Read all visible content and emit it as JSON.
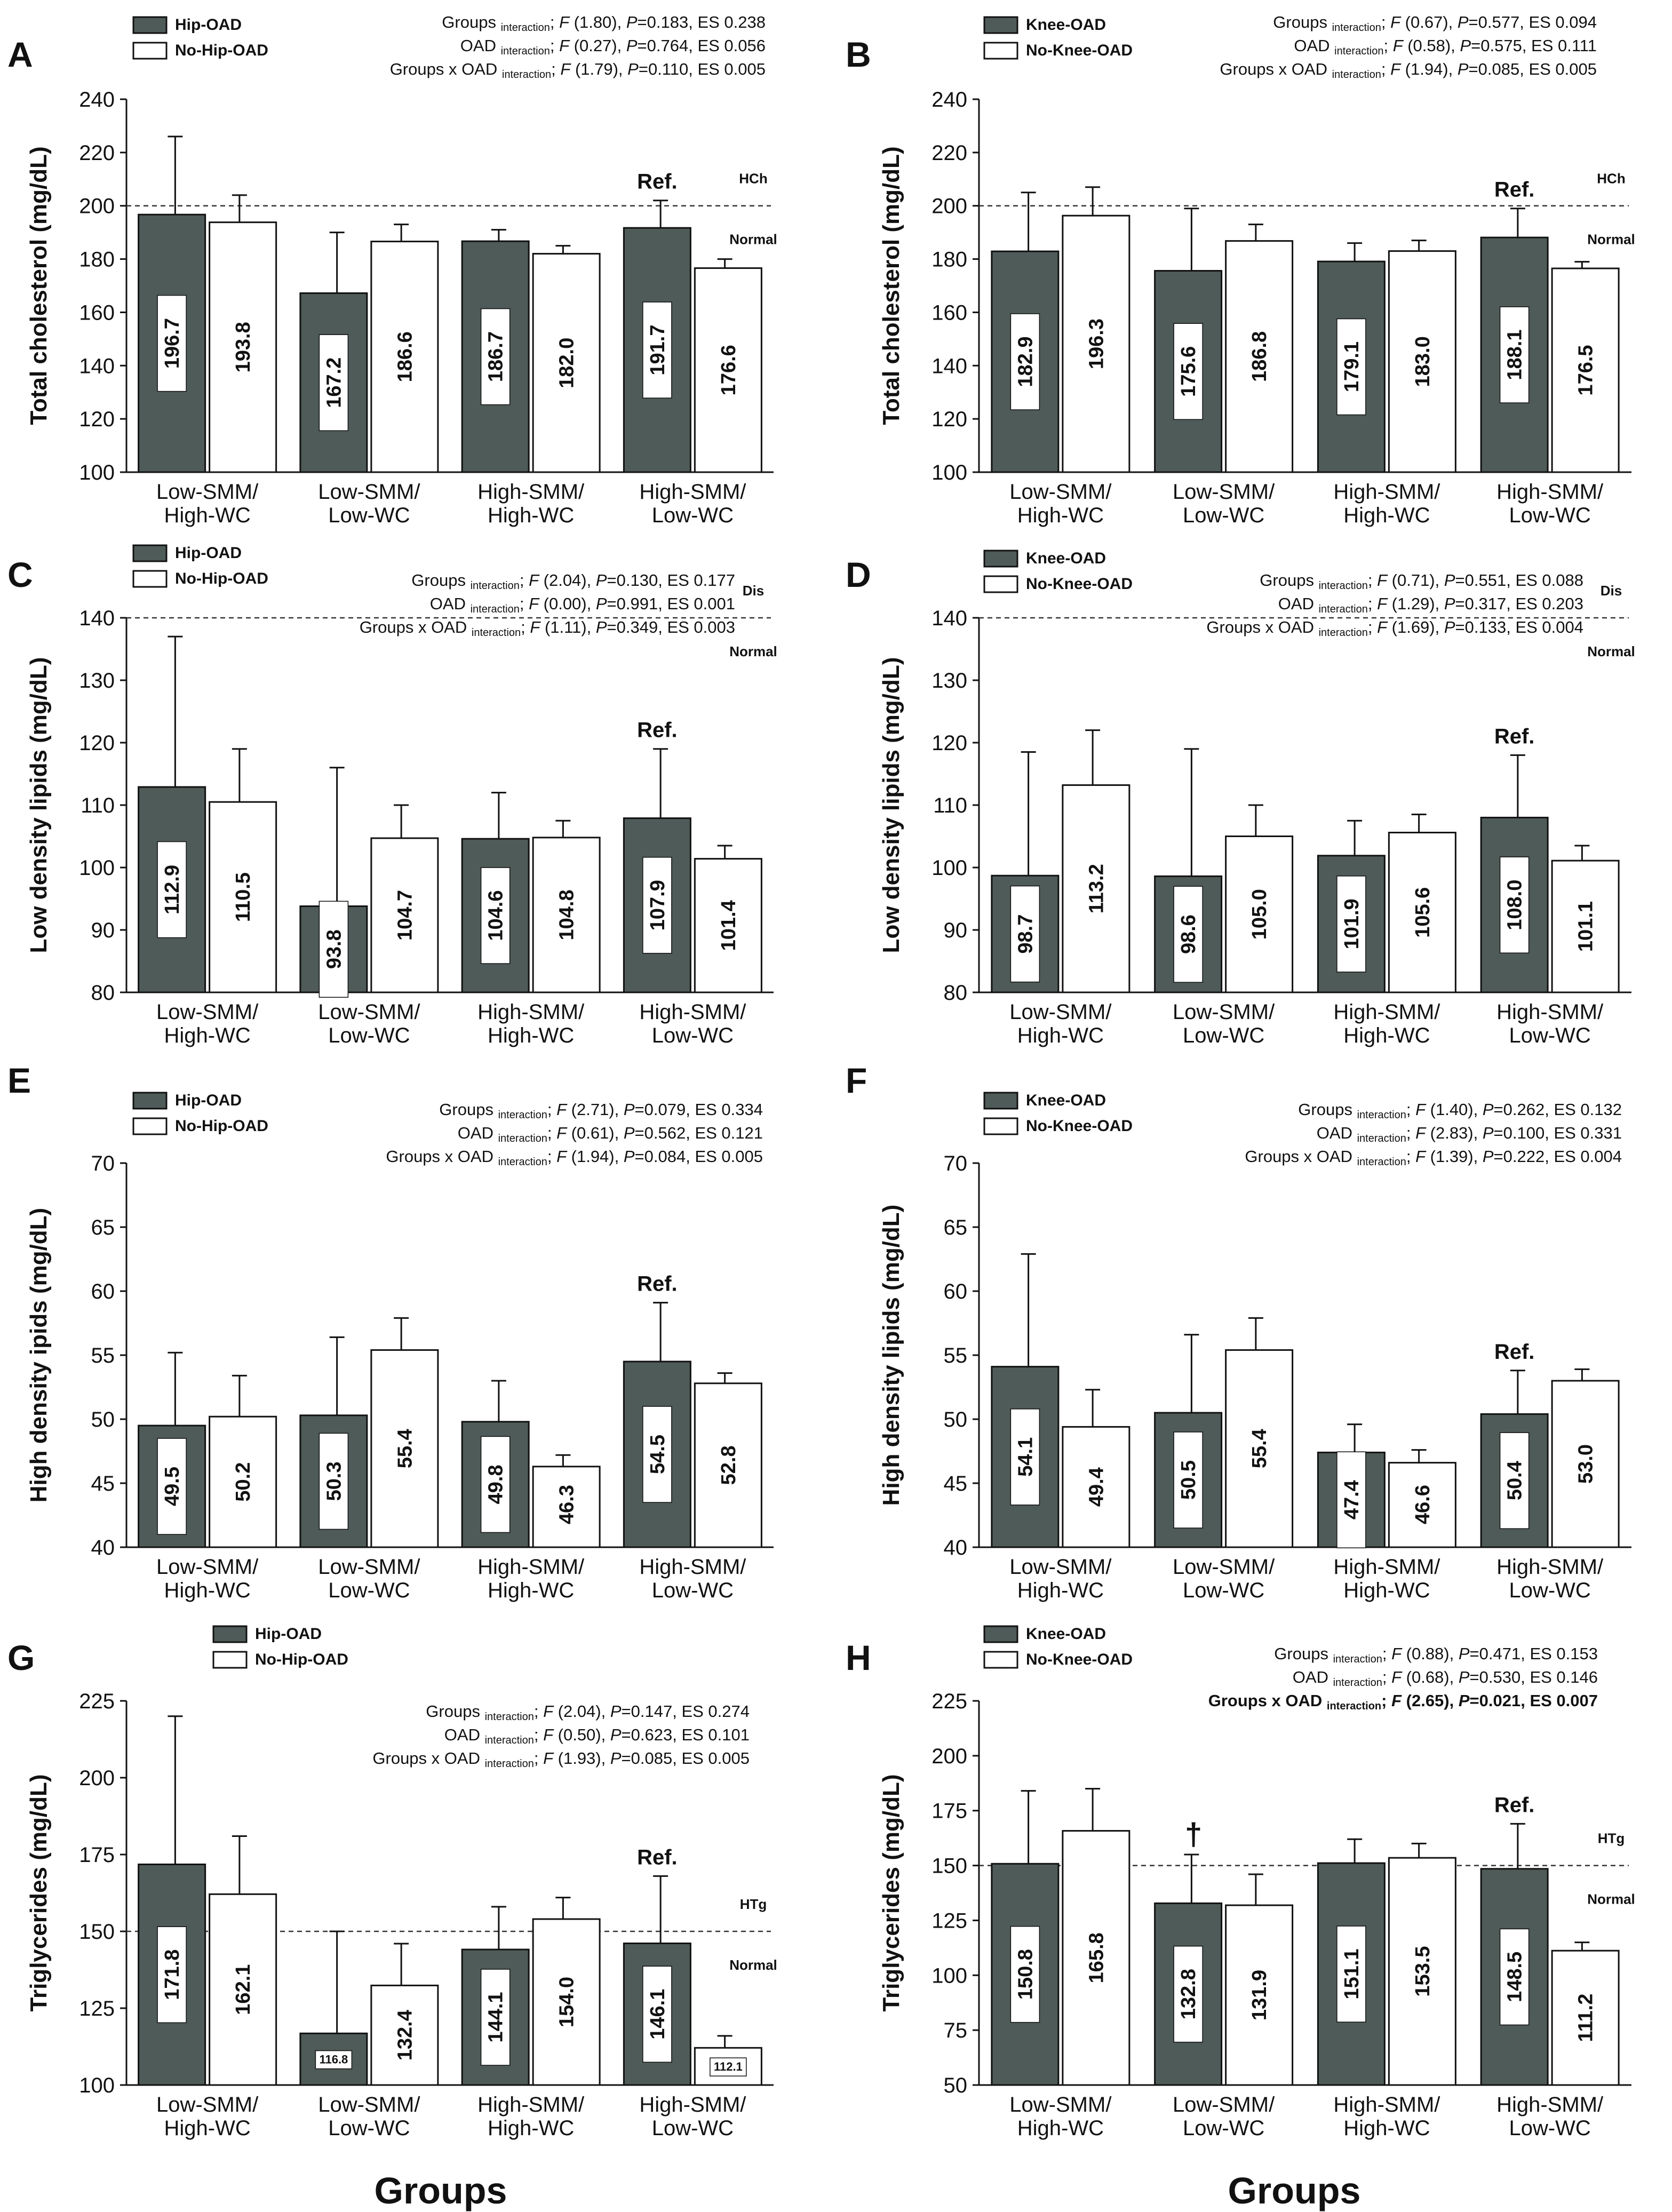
{
  "colors": {
    "dark_bar": "#4f5b58",
    "light_bar": "#ffffff",
    "text": "#111111"
  },
  "xaxis_title": "Groups",
  "chart_data": [
    {
      "id": "A",
      "type": "bar",
      "panel_letter": "A",
      "ylabel": "Total cholesterol (mg/dL)",
      "ylim": [
        100,
        240
      ],
      "yticks": [
        100,
        120,
        140,
        160,
        180,
        200,
        220,
        240
      ],
      "categories": [
        "Low-SMM/\nHigh-WC",
        "Low-SMM/\nLow-WC",
        "High-SMM/\nHigh-WC",
        "High-SMM/\nLow-WC"
      ],
      "series": [
        {
          "name": "Hip-OAD",
          "values": [
            196.7,
            167.2,
            186.7,
            191.7
          ],
          "errors": [
            226,
            190,
            191,
            202
          ],
          "labels": [
            "196.7",
            "167.2",
            "186.7",
            "191.7"
          ]
        },
        {
          "name": "No-Hip-OAD",
          "values": [
            193.8,
            186.6,
            182.0,
            176.6
          ],
          "errors": [
            204,
            193,
            185,
            180
          ],
          "labels": [
            "193.8",
            "186.6",
            "182.0",
            "176.6"
          ]
        }
      ],
      "ref_line": 200,
      "zone_above": "HCh",
      "zone_below": "Normal",
      "ref_label": "Ref.",
      "stats": [
        {
          "term": "Groups",
          "F": "(1.80)",
          "P": "=0.183",
          "ES": ", ES 0.238",
          "bold": false
        },
        {
          "term": "OAD",
          "F": "(0.27)",
          "P": "=0.764",
          "ES": ", ES 0.056",
          "bold": false
        },
        {
          "term": "Groups x OAD",
          "F": "(1.79)",
          "P": "=0.110",
          "ES": ", ES 0.005",
          "bold": false
        }
      ],
      "markers": []
    },
    {
      "id": "B",
      "type": "bar",
      "panel_letter": "B",
      "ylabel": "Total cholesterol (mg/dL)",
      "ylim": [
        100,
        240
      ],
      "yticks": [
        100,
        120,
        140,
        160,
        180,
        200,
        220,
        240
      ],
      "categories": [
        "Low-SMM/\nHigh-WC",
        "Low-SMM/\nLow-WC",
        "High-SMM/\nHigh-WC",
        "High-SMM/\nLow-WC"
      ],
      "series": [
        {
          "name": "Knee-OAD",
          "values": [
            182.9,
            175.6,
            179.1,
            188.1
          ],
          "errors": [
            205,
            199,
            186,
            199
          ],
          "labels": [
            "182.9",
            "175.6",
            "179.1",
            "188.1"
          ]
        },
        {
          "name": "No-Knee-OAD",
          "values": [
            196.3,
            186.8,
            183.0,
            176.5
          ],
          "errors": [
            207,
            193,
            187,
            179
          ],
          "labels": [
            "196.3",
            "186.8",
            "183.0",
            "176.5"
          ]
        }
      ],
      "ref_line": 200,
      "zone_above": "HCh",
      "zone_below": "Normal",
      "ref_label": "Ref.",
      "stats": [
        {
          "term": "Groups",
          "F": "(0.67)",
          "P": "=0.577",
          "ES": ", ES 0.094",
          "bold": false
        },
        {
          "term": "OAD",
          "F": "(0.58)",
          "P": "=0.575",
          "ES": ", ES 0.111",
          "bold": false
        },
        {
          "term": "Groups x OAD",
          "F": "(1.94)",
          "P": "=0.085",
          "ES": ", ES 0.005",
          "bold": false
        }
      ],
      "markers": []
    },
    {
      "id": "C",
      "type": "bar",
      "panel_letter": "C",
      "ylabel": "Low density lipids (mg/dL)",
      "ylim": [
        80,
        140
      ],
      "yticks": [
        80,
        90,
        100,
        110,
        120,
        130,
        140
      ],
      "categories": [
        "Low-SMM/\nHigh-WC",
        "Low-SMM/\nLow-WC",
        "High-SMM/\nHigh-WC",
        "High-SMM/\nLow-WC"
      ],
      "series": [
        {
          "name": "Hip-OAD",
          "values": [
            112.9,
            93.8,
            104.6,
            107.9
          ],
          "errors": [
            137,
            116,
            112,
            119
          ],
          "labels": [
            "112.9",
            "93.8",
            "104.6",
            "107.9"
          ]
        },
        {
          "name": "No-Hip-OAD",
          "values": [
            110.5,
            104.7,
            104.8,
            101.4
          ],
          "errors": [
            119,
            110,
            107.5,
            103.5
          ],
          "labels": [
            "110.5",
            "104.7",
            "104.8",
            "101.4"
          ]
        }
      ],
      "ref_line": 140,
      "zone_above": "Dis",
      "zone_below": "Normal",
      "ref_label": "Ref.",
      "stats": [
        {
          "term": "Groups",
          "F": "(2.04)",
          "P": "=0.130",
          "ES": ", ES 0.177",
          "bold": false
        },
        {
          "term": "OAD",
          "F": "(0.00)",
          "P": "=0.991",
          "ES": ", ES 0.001",
          "bold": false
        },
        {
          "term": "Groups x OAD",
          "F": "(1.11)",
          "P": "=0.349",
          "ES": ", ES 0.003",
          "bold": false
        }
      ],
      "markers": []
    },
    {
      "id": "D",
      "type": "bar",
      "panel_letter": "D",
      "ylabel": "Low density lipids (mg/dL)",
      "ylim": [
        80,
        140
      ],
      "yticks": [
        80,
        90,
        100,
        110,
        120,
        130,
        140
      ],
      "categories": [
        "Low-SMM/\nHigh-WC",
        "Low-SMM/\nLow-WC",
        "High-SMM/\nHigh-WC",
        "High-SMM/\nLow-WC"
      ],
      "series": [
        {
          "name": "Knee-OAD",
          "values": [
            98.7,
            98.6,
            101.9,
            108.0
          ],
          "errors": [
            118.5,
            119,
            107.5,
            118
          ],
          "labels": [
            "98.7",
            "98.6",
            "101.9",
            "108.0"
          ]
        },
        {
          "name": "No-Knee-OAD",
          "values": [
            113.2,
            105.0,
            105.6,
            101.1
          ],
          "errors": [
            122,
            110,
            108.5,
            103.5
          ],
          "labels": [
            "113.2",
            "105.0",
            "105.6",
            "101.1"
          ]
        }
      ],
      "ref_line": 140,
      "zone_above": "Dis",
      "zone_below": "Normal",
      "ref_label": "Ref.",
      "stats": [
        {
          "term": "Groups",
          "F": "(0.71)",
          "P": "=0.551",
          "ES": ", ES 0.088",
          "bold": false
        },
        {
          "term": "OAD",
          "F": "(1.29)",
          "P": "=0.317",
          "ES": ", ES 0.203",
          "bold": false
        },
        {
          "term": "Groups x OAD",
          "F": "(1.69)",
          "P": "=0.133",
          "ES": ", ES 0.004",
          "bold": false
        }
      ],
      "markers": []
    },
    {
      "id": "E",
      "type": "bar",
      "panel_letter": "E",
      "ylabel": "High density ipids (mg/dL)",
      "ylim": [
        40,
        70
      ],
      "yticks": [
        40,
        45,
        50,
        55,
        60,
        65,
        70
      ],
      "categories": [
        "Low-SMM/\nHigh-WC",
        "Low-SMM/\nLow-WC",
        "High-SMM/\nHigh-WC",
        "High-SMM/\nLow-WC"
      ],
      "series": [
        {
          "name": "Hip-OAD",
          "values": [
            49.5,
            50.3,
            49.8,
            54.5
          ],
          "errors": [
            55.2,
            56.4,
            53,
            59.1
          ],
          "labels": [
            "49.5",
            "50.3",
            "49.8",
            "54.5"
          ]
        },
        {
          "name": "No-Hip-OAD",
          "values": [
            50.2,
            55.4,
            46.3,
            52.8
          ],
          "errors": [
            53.4,
            57.9,
            47.2,
            53.6
          ],
          "labels": [
            "50.2",
            "55.4",
            "46.3",
            "52.8"
          ]
        }
      ],
      "ref_line": null,
      "zone_above": "",
      "zone_below": "",
      "ref_label": "Ref.",
      "stats": [
        {
          "term": "Groups",
          "F": "(2.71)",
          "P": "=0.079",
          "ES": ", ES 0.334",
          "bold": false
        },
        {
          "term": "OAD",
          "F": "(0.61)",
          "P": "=0.562",
          "ES": ", ES 0.121",
          "bold": false
        },
        {
          "term": "Groups x OAD",
          "F": "(1.94)",
          "P": "=0.084",
          "ES": ", ES 0.005",
          "bold": false
        }
      ],
      "markers": []
    },
    {
      "id": "F",
      "type": "bar",
      "panel_letter": "F",
      "ylabel": "High density lipids (mg/dL)",
      "ylim": [
        40,
        70
      ],
      "yticks": [
        40,
        45,
        50,
        55,
        60,
        65,
        70
      ],
      "categories": [
        "Low-SMM/\nHigh-WC",
        "Low-SMM/\nLow-WC",
        "High-SMM/\nHigh-WC",
        "High-SMM/\nLow-WC"
      ],
      "series": [
        {
          "name": "Knee-OAD",
          "values": [
            54.1,
            50.5,
            47.4,
            50.4
          ],
          "errors": [
            62.9,
            56.6,
            49.6,
            53.8
          ],
          "labels": [
            "54.1",
            "50.5",
            "47.4",
            "50.4"
          ]
        },
        {
          "name": "No-Knee-OAD",
          "values": [
            49.4,
            55.4,
            46.6,
            53.0
          ],
          "errors": [
            52.3,
            57.9,
            47.6,
            53.9
          ],
          "labels": [
            "49.4",
            "55.4",
            "46.6",
            "53.0"
          ]
        }
      ],
      "ref_line": null,
      "zone_above": "",
      "zone_below": "",
      "ref_label": "Ref.",
      "stats": [
        {
          "term": "Groups",
          "F": "(1.40)",
          "P": "=0.262",
          "ES": ", ES 0.132",
          "bold": false
        },
        {
          "term": "OAD",
          "F": "(2.83)",
          "P": "=0.100",
          "ES": ", ES 0.331",
          "bold": false
        },
        {
          "term": "Groups x OAD",
          "F": "(1.39)",
          "P": "=0.222",
          "ES": ", ES 0.004",
          "bold": false
        }
      ],
      "markers": []
    },
    {
      "id": "G",
      "type": "bar",
      "panel_letter": "G",
      "ylabel": "Triglycerides (mg/dL)",
      "ylim": [
        100,
        225
      ],
      "yticks": [
        100,
        125,
        150,
        175,
        200,
        225
      ],
      "categories": [
        "Low-SMM/\nHigh-WC",
        "Low-SMM/\nLow-WC",
        "High-SMM/\nHigh-WC",
        "High-SMM/\nLow-WC"
      ],
      "series": [
        {
          "name": "Hip-OAD",
          "values": [
            171.8,
            116.8,
            144.1,
            146.1
          ],
          "errors": [
            220,
            150,
            158,
            168
          ],
          "labels": [
            "171.8",
            "116.8",
            "144.1",
            "146.1"
          ]
        },
        {
          "name": "No-Hip-OAD",
          "values": [
            162.1,
            132.4,
            154.0,
            112.1
          ],
          "errors": [
            181,
            146,
            161,
            116
          ],
          "labels": [
            "162.1",
            "132.4",
            "154.0",
            "112.1"
          ]
        }
      ],
      "ref_line": 150,
      "zone_above": "HTg",
      "zone_below": "Normal",
      "ref_label": "Ref.",
      "stats": [
        {
          "term": "Groups",
          "F": "(2.04)",
          "P": "=0.147",
          "ES": ", ES 0.274",
          "bold": false
        },
        {
          "term": "OAD",
          "F": "(0.50)",
          "P": "=0.623",
          "ES": ", ES 0.101",
          "bold": false
        },
        {
          "term": "Groups x OAD",
          "F": "(1.93)",
          "P": "=0.085",
          "ES": ", ES 0.005",
          "bold": false
        }
      ],
      "markers": []
    },
    {
      "id": "H",
      "type": "bar",
      "panel_letter": "H",
      "ylabel": "Triglycerides (mg/dL)",
      "ylim": [
        50,
        225
      ],
      "yticks": [
        50,
        75,
        100,
        125,
        150,
        175,
        200,
        225
      ],
      "categories": [
        "Low-SMM/\nHigh-WC",
        "Low-SMM/\nLow-WC",
        "High-SMM/\nHigh-WC",
        "High-SMM/\nLow-WC"
      ],
      "series": [
        {
          "name": "Knee-OAD",
          "values": [
            150.8,
            132.8,
            151.1,
            148.5
          ],
          "errors": [
            184,
            155,
            162,
            169
          ],
          "labels": [
            "150.8",
            "132.8",
            "151.1",
            "148.5"
          ]
        },
        {
          "name": "No-Knee-OAD",
          "values": [
            165.8,
            131.9,
            153.5,
            111.2
          ],
          "errors": [
            185,
            146,
            160,
            115
          ],
          "labels": [
            "165.8",
            "131.9",
            "153.5",
            "111.2"
          ]
        }
      ],
      "ref_line": 150,
      "zone_above": "HTg",
      "zone_below": "Normal",
      "ref_label": "Ref.",
      "stats": [
        {
          "term": "Groups",
          "F": "(0.88)",
          "P": "=0.471",
          "ES": ", ES 0.153",
          "bold": false
        },
        {
          "term": "OAD",
          "F": "(0.68)",
          "P": "=0.530",
          "ES": ", ES 0.146",
          "bold": false
        },
        {
          "term": "Groups x OAD",
          "F": "(2.65)",
          "P": "=0.021",
          "ES": ", ES 0.007",
          "bold": true
        }
      ],
      "markers": [
        {
          "series": 0,
          "category": 1,
          "symbol": "†"
        }
      ]
    }
  ]
}
